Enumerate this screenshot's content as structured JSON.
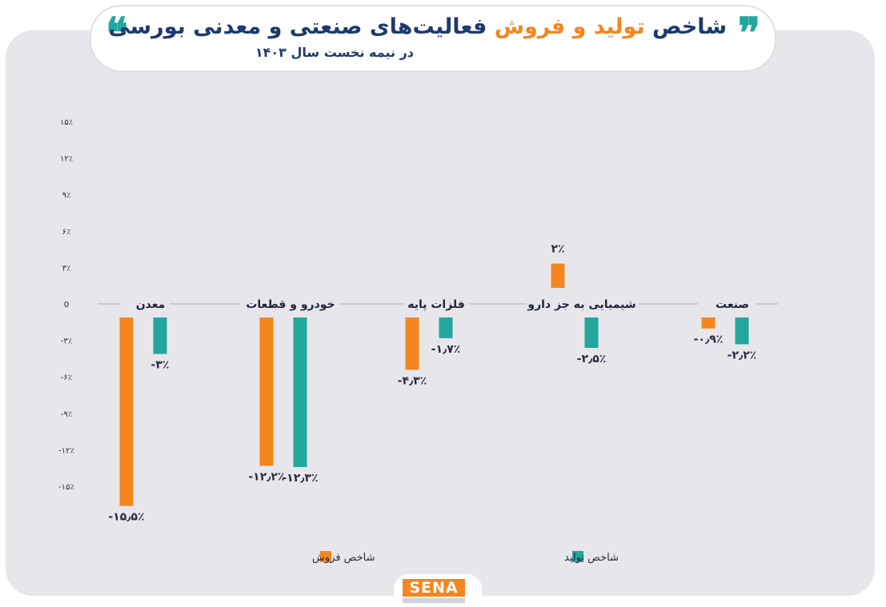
{
  "header": {
    "title_part1": "شاخص",
    "title_part2": "تولید و فروش",
    "title_part3": "فعالیت‌های صنعتی و معدنی بورسی",
    "subtitle": "در نیمه نخست سال ۱۴۰۳",
    "quote_open": "❝",
    "quote_close": "❞"
  },
  "logo": {
    "text": "SENA"
  },
  "chart_data": {
    "type": "bar",
    "categories": [
      "صنعت",
      "شیمیایی به جز دارو",
      "فلزات پایه",
      "خودرو و قطعات",
      "معدن"
    ],
    "series": [
      {
        "name": "شاخص تولید",
        "color": "#21a79c",
        "values": [
          -2.2,
          -2.5,
          -1.7,
          -12.3,
          -3
        ],
        "labels": [
          "-۲٫۲٪",
          "-۲٫۵٪",
          "-۱٫۷٪",
          "-۱۲٫۳٪",
          "-۳٪"
        ]
      },
      {
        "name": "شاخص فروش",
        "color": "#f4861f",
        "values": [
          -0.9,
          2,
          -4.3,
          -12.2,
          -15.5
        ],
        "labels": [
          "-۰٫۹٪",
          "۲٪",
          "-۴٫۳٪",
          "-۱۲٫۲٪",
          "-۱۵٫۵٪"
        ]
      }
    ],
    "yticks": [
      15,
      12,
      9,
      6,
      3,
      0,
      -3,
      -6,
      -9,
      -12,
      -15
    ],
    "ytick_labels": [
      "۱۵٪",
      "۱۲٪",
      "۹٪",
      "۶٪",
      "۳٪",
      "0",
      "-۳٪",
      "-۶٪",
      "-۹٪",
      "-۱۲٪",
      "-۱۵٪"
    ],
    "ylim": [
      -16,
      15
    ],
    "grid": false,
    "legend_placement": "bottom"
  }
}
